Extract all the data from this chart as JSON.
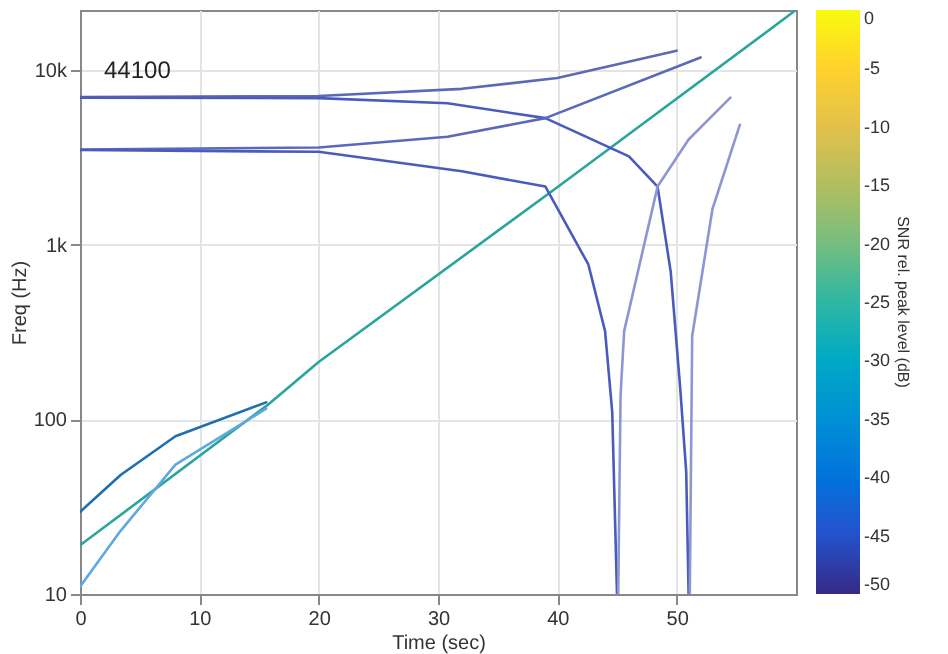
{
  "chart_data": {
    "type": "line",
    "xlabel": "Time (sec)",
    "ylabel": "Freq (Hz)",
    "clabel": "SNR rel. peak level (dB)",
    "annotations": [
      "44100"
    ],
    "xlim": [
      0,
      60
    ],
    "xticks": [
      0,
      10,
      20,
      30,
      40,
      50
    ],
    "ylim": [
      10,
      22050
    ],
    "yticks": [
      {
        "value": 10,
        "label": "10"
      },
      {
        "value": 100,
        "label": "100"
      },
      {
        "value": 1000,
        "label": "1k"
      },
      {
        "value": 10000,
        "label": "10k"
      }
    ],
    "log": "y",
    "grid": true,
    "clim": [
      -50,
      0
    ],
    "cticks": [
      -50,
      -45,
      -40,
      -35,
      -30,
      -25,
      -20,
      -15,
      -10,
      -5,
      0
    ],
    "series": [
      {
        "color": "#2aa59a",
        "x": [
          0,
          15.6,
          20,
          40,
          60
        ],
        "values": [
          19,
          119,
          213,
          2130,
          22050
        ]
      },
      {
        "color": "#1f6fae",
        "x": [
          0,
          3.4,
          8,
          15.6
        ],
        "values": [
          29.5,
          48,
          80,
          125
        ]
      },
      {
        "color": "#5fa8e0",
        "x": [
          0,
          3.4,
          8,
          15.6
        ],
        "values": [
          11,
          23,
          55,
          115
        ]
      },
      {
        "color": "#5a6ab8",
        "x": [
          0,
          20,
          32,
          40,
          50
        ],
        "values": [
          7000,
          7100,
          7800,
          9000,
          12900
        ]
      },
      {
        "color": "#4a5bbd",
        "x": [
          0,
          20,
          30.8,
          39,
          46,
          48.4,
          49.5,
          50.3,
          50.8,
          51
        ],
        "values": [
          6950,
          6900,
          6450,
          5300,
          3200,
          2150,
          700,
          150,
          50,
          10
        ]
      },
      {
        "color": "#5a6ab8",
        "x": [
          0,
          20,
          30.8,
          39,
          52
        ],
        "values": [
          3500,
          3600,
          4150,
          5300,
          11800
        ]
      },
      {
        "color": "#4a5bbd",
        "x": [
          0,
          20,
          32,
          39,
          42.6,
          44,
          44.6,
          45
        ],
        "values": [
          3480,
          3400,
          2630,
          2150,
          770,
          320,
          110,
          10
        ]
      },
      {
        "color": "#8c96d2",
        "x": [
          45.1,
          45.3,
          45.6,
          48.4,
          51,
          54.5
        ],
        "values": [
          10,
          138,
          320,
          2150,
          4000,
          6950
        ]
      },
      {
        "color": "#8c96d2",
        "x": [
          51.1,
          51.3,
          53,
          55.3
        ],
        "values": [
          10,
          300,
          1600,
          4860
        ]
      }
    ]
  }
}
